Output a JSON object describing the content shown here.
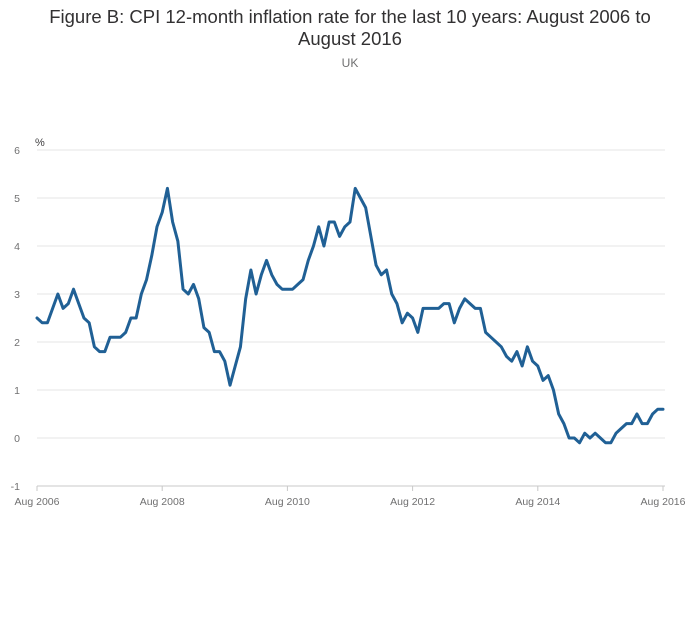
{
  "chart_data": {
    "type": "line",
    "title": "Figure B: CPI 12-month inflation rate for the last 10 years: August 2006 to August 2016",
    "subtitle": "UK",
    "ylabel": "%",
    "xlabel": "",
    "ylim": [
      -1,
      6
    ],
    "y_ticks": [
      "6",
      "5",
      "4",
      "3",
      "2",
      "1",
      "0",
      "-1"
    ],
    "x_ticks": [
      "Aug 2006",
      "Aug 2008",
      "Aug 2010",
      "Aug 2012",
      "Aug 2014",
      "Aug 2016"
    ],
    "grid": true,
    "color": "#206095",
    "series": [
      {
        "start": "Aug 2006",
        "values": [
          2.5,
          2.4,
          2.4,
          2.7,
          3.0,
          2.7,
          2.8,
          3.1,
          2.8,
          2.5,
          2.4,
          1.9,
          1.8,
          1.8,
          2.1,
          2.1,
          2.1,
          2.2,
          2.5,
          2.5,
          3.0,
          3.3,
          3.8,
          4.4,
          4.7,
          5.2,
          4.5,
          4.1,
          3.1,
          3.0,
          3.2,
          2.9,
          2.3,
          2.2,
          1.8,
          1.8,
          1.6,
          1.1,
          1.5,
          1.9,
          2.9,
          3.5,
          3.0,
          3.4,
          3.7,
          3.4,
          3.2,
          3.1,
          3.1,
          3.1,
          3.2,
          3.3,
          3.7,
          4.0,
          4.4,
          4.0,
          4.5,
          4.5,
          4.2,
          4.4,
          4.5,
          5.2,
          5.0,
          4.8,
          4.2,
          3.6,
          3.4,
          3.5,
          3.0,
          2.8,
          2.4,
          2.6,
          2.5,
          2.2,
          2.7,
          2.7,
          2.7,
          2.7,
          2.8,
          2.8,
          2.4,
          2.7,
          2.9,
          2.8,
          2.7,
          2.7,
          2.2,
          2.1,
          2.0,
          1.9,
          1.7,
          1.6,
          1.8,
          1.5,
          1.9,
          1.6,
          1.5,
          1.2,
          1.3,
          1.0,
          0.5,
          0.3,
          0.0,
          0.0,
          -0.1,
          0.1,
          0.0,
          0.1,
          0.0,
          -0.1,
          -0.1,
          0.1,
          0.2,
          0.3,
          0.3,
          0.5,
          0.3,
          0.3,
          0.5,
          0.6,
          0.6
        ]
      }
    ]
  }
}
